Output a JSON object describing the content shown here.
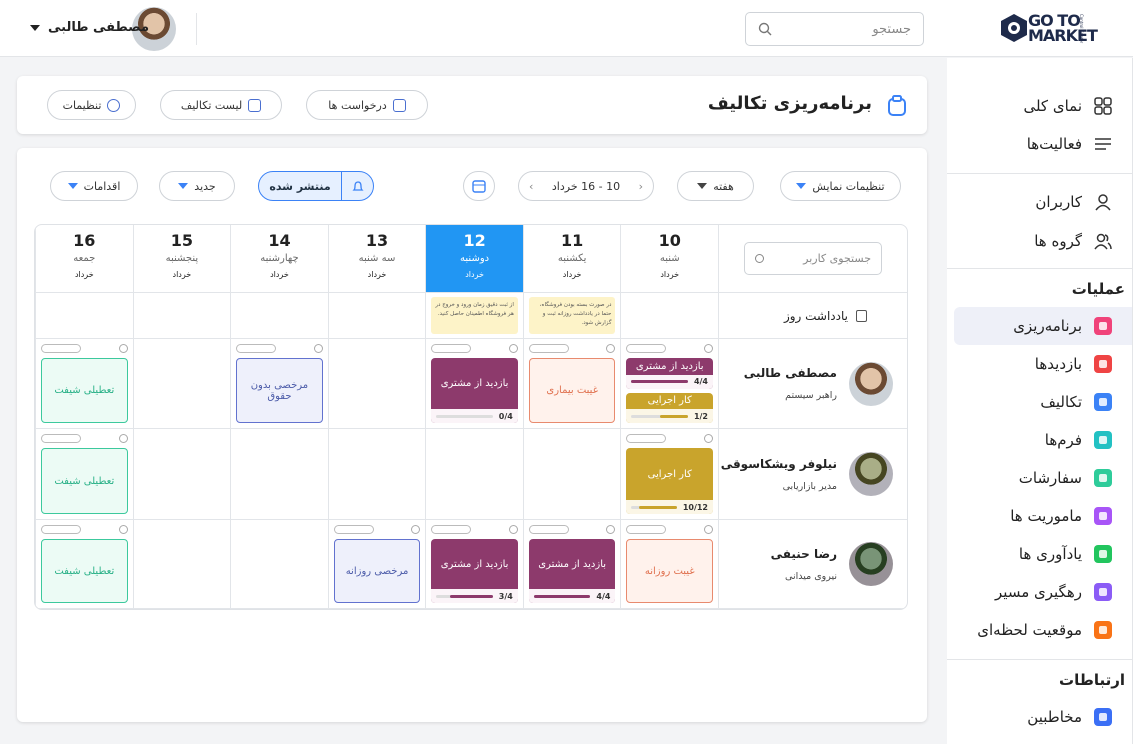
{
  "header": {
    "logo_top": "GO TO",
    "logo_bottom": "MARKET",
    "logo_small": "Control Center",
    "search_placeholder": "جستجو",
    "user_name": "مصطفی طالبی"
  },
  "sidebar": {
    "top_items": [
      {
        "label": "نمای کلی",
        "icon": "grid"
      },
      {
        "label": "فعالیت‌ها",
        "icon": "lines"
      }
    ],
    "user_items": [
      {
        "label": "کاربران",
        "icon": "user"
      },
      {
        "label": "گروه ها",
        "icon": "users"
      }
    ],
    "sections": [
      {
        "title": "عملیات",
        "items": [
          {
            "label": "برنامه‌ریزی",
            "color": "#f0437a",
            "active": true
          },
          {
            "label": "بازدیدها",
            "color": "#ef4444"
          },
          {
            "label": "تکالیف",
            "color": "#3b82f6"
          },
          {
            "label": "فرم‌ها",
            "color": "#22c1c3"
          },
          {
            "label": "سفارشات",
            "color": "#2ecc9a"
          },
          {
            "label": "ماموریت ها",
            "color": "#a855f7"
          },
          {
            "label": "یادآوری ها",
            "color": "#22c55e"
          },
          {
            "label": "رهگیری مسیر",
            "color": "#8b5cf6"
          },
          {
            "label": "موقعیت لحظه‌ای",
            "color": "#f97316"
          }
        ]
      },
      {
        "title": "ارتباطات",
        "items": [
          {
            "label": "مخاطبین",
            "color": "#3b6ff5"
          }
        ]
      }
    ]
  },
  "page": {
    "title": "برنامه‌ریزی تکالیف",
    "actions": [
      "درخواست ها",
      "لیست تکالیف",
      "تنظیمات"
    ]
  },
  "toolbar": {
    "display_settings": "تنظیمات نمایش",
    "view": "هفته",
    "range": "10 - 16 خرداد",
    "published": "منتشر شده",
    "new": "جدید",
    "actions": "اقدامات"
  },
  "schedule": {
    "search_placeholder": "جستجوی کاربر",
    "notes_label": "یادداشت روز",
    "days": [
      {
        "date": 10,
        "name": "شنبه",
        "month": "خرداد"
      },
      {
        "date": 11,
        "name": "یکشنبه",
        "month": "خرداد",
        "note": "در صورت بسته بودن فروشگاه، حتما در یادداشت روزانه ثبت و گزارش شود."
      },
      {
        "date": 12,
        "name": "دوشنبه",
        "month": "خرداد",
        "today": true,
        "note": "از ثبت دقیق زمان ورود و خروج در هر فروشگاه اطمینان حاصل کنید."
      },
      {
        "date": 13,
        "name": "سه شنبه",
        "month": "خرداد"
      },
      {
        "date": 14,
        "name": "چهارشنبه",
        "month": "خرداد"
      },
      {
        "date": 15,
        "name": "پنجشنبه",
        "month": "خرداد"
      },
      {
        "date": 16,
        "name": "جمعه",
        "month": "خرداد"
      }
    ],
    "users": [
      {
        "name": "مصطفی طالبی",
        "role": "راهبر سیستم",
        "shifts": [
          [
            {
              "label": "بازدید از مشتری",
              "kind": "purple",
              "progress": "4/4"
            },
            {
              "label": "کار اجرایی",
              "kind": "gold",
              "progress": "1/2"
            }
          ],
          [
            {
              "label": "غیبت بیماری",
              "kind": "orange"
            }
          ],
          [
            {
              "label": "بازدید از مشتری",
              "kind": "purple",
              "progress": "0/4"
            }
          ],
          [],
          [
            {
              "label": "مرخصی بدون حقوق",
              "kind": "blue"
            }
          ],
          [],
          [
            {
              "label": "تعطیلی شیفت",
              "kind": "green"
            }
          ]
        ]
      },
      {
        "name": "نیلوفر ویشکاسوقی",
        "role": "مدیر بازاریابی",
        "shifts": [
          [
            {
              "label": "کار اجرایی",
              "kind": "gold",
              "progress": "10/12"
            }
          ],
          [],
          [],
          [],
          [],
          [],
          [
            {
              "label": "تعطیلی شیفت",
              "kind": "green"
            }
          ]
        ]
      },
      {
        "name": "رضا حنیفی",
        "role": "نیروی میدانی",
        "shifts": [
          [
            {
              "label": "غیبت روزانه",
              "kind": "orange"
            }
          ],
          [
            {
              "label": "بازدید از مشتری",
              "kind": "purple",
              "progress": "4/4"
            }
          ],
          [
            {
              "label": "بازدید از مشتری",
              "kind": "purple",
              "progress": "3/4"
            }
          ],
          [
            {
              "label": "مرخصی روزانه",
              "kind": "blue"
            }
          ],
          [],
          [],
          [
            {
              "label": "تعطیلی شیفت",
              "kind": "green"
            }
          ]
        ]
      }
    ]
  }
}
